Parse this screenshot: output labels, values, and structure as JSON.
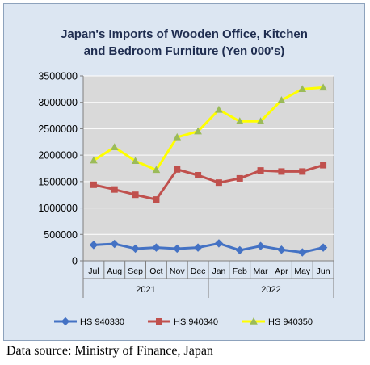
{
  "chart_data": {
    "type": "line",
    "title_lines": [
      "Japan's Imports of  Wooden  Office, Kitchen",
      "and Bedroom Furniture (Yen 000's)"
    ],
    "categories": [
      "Jul",
      "Aug",
      "Sep",
      "Oct",
      "Nov",
      "Dec",
      "Jan",
      "Feb",
      "Mar",
      "Apr",
      "May",
      "Jun"
    ],
    "groups": [
      {
        "label": "2021",
        "start": 0,
        "end": 5
      },
      {
        "label": "2022",
        "start": 6,
        "end": 11
      }
    ],
    "ylim": [
      0,
      3500000
    ],
    "yticks": [
      0,
      500000,
      1000000,
      1500000,
      2000000,
      2500000,
      3000000,
      3500000
    ],
    "grid": true,
    "legend_position": "bottom",
    "series": [
      {
        "name": "HS 940330",
        "color": "#4472c4",
        "marker": "diamond",
        "values": [
          300000,
          320000,
          230000,
          250000,
          230000,
          250000,
          330000,
          200000,
          280000,
          210000,
          160000,
          250000
        ]
      },
      {
        "name": "HS 940340",
        "color": "#c0504d",
        "marker": "square",
        "values": [
          1440000,
          1350000,
          1250000,
          1160000,
          1730000,
          1620000,
          1480000,
          1560000,
          1710000,
          1690000,
          1690000,
          1810000
        ]
      },
      {
        "name": "HS 940350",
        "color": "#ffff00",
        "marker": "triangle",
        "values": [
          1900000,
          2150000,
          1890000,
          1720000,
          2340000,
          2450000,
          2860000,
          2640000,
          2640000,
          3040000,
          3250000,
          3280000
        ]
      }
    ]
  },
  "source_text": "Data source: Ministry of Finance, Japan"
}
